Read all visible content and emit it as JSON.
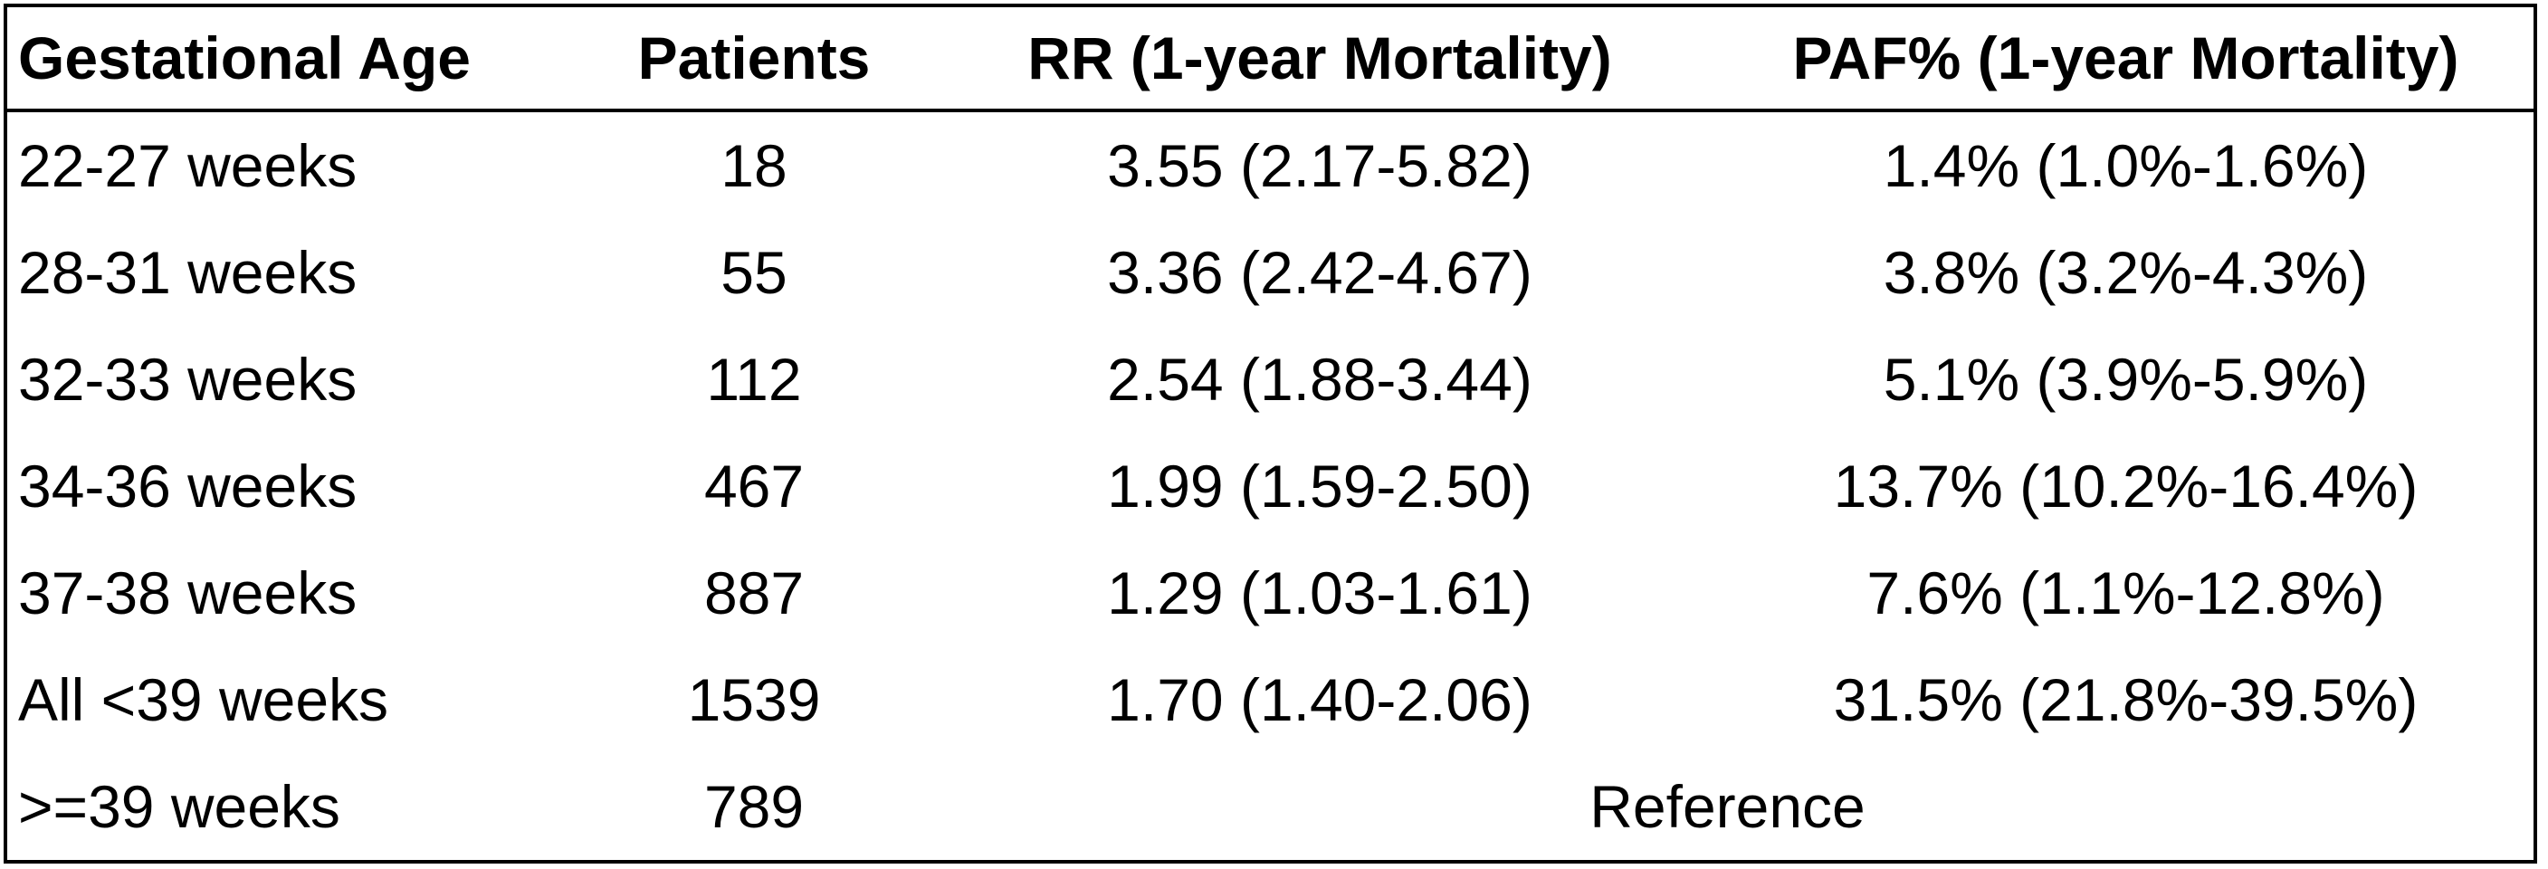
{
  "table": {
    "headers": [
      "Gestational Age",
      "Patients",
      "RR (1-year Mortality)",
      "PAF% (1-year Mortality)"
    ],
    "rows": [
      [
        "22-27 weeks",
        "18",
        "3.55 (2.17-5.82)",
        "1.4% (1.0%-1.6%)"
      ],
      [
        "28-31 weeks",
        "55",
        "3.36 (2.42-4.67)",
        "3.8% (3.2%-4.3%)"
      ],
      [
        "32-33 weeks",
        "112",
        "2.54 (1.88-3.44)",
        "5.1% (3.9%-5.9%)"
      ],
      [
        "34-36 weeks",
        "467",
        "1.99 (1.59-2.50)",
        "13.7% (10.2%-16.4%)"
      ],
      [
        "37-38 weeks",
        "887",
        "1.29 (1.03-1.61)",
        "7.6% (1.1%-12.8%)"
      ],
      [
        "All <39 weeks",
        "1539",
        "1.70 (1.40-2.06)",
        "31.5% (21.8%-39.5%)"
      ]
    ],
    "reference_row": {
      "age": ">=39 weeks",
      "patients": "789",
      "label": "Reference"
    }
  }
}
